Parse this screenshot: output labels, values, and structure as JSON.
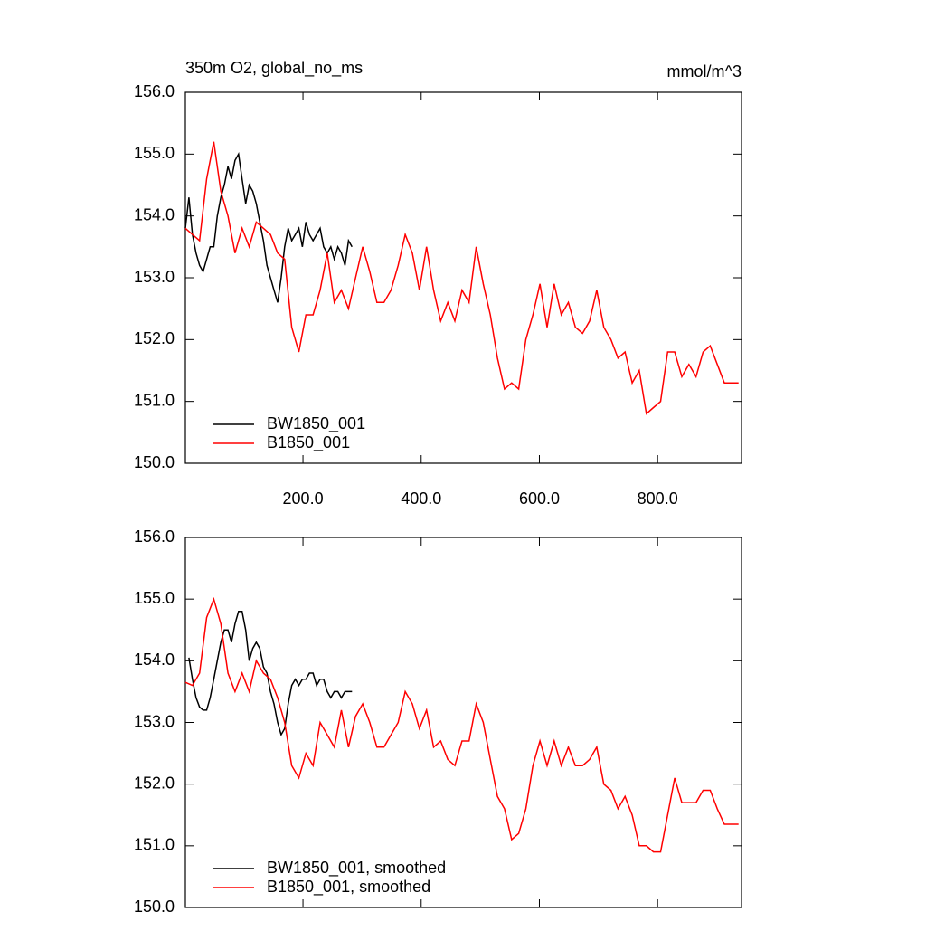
{
  "chart_data": [
    {
      "type": "line",
      "title": "350m O2, global_no_ms",
      "units": "mmol/m^3",
      "legend": "lower left",
      "grid": false,
      "xlim": [
        1,
        942
      ],
      "ylim": [
        150,
        156
      ],
      "xticks": [
        {
          "value": 200,
          "label": "200.0"
        },
        {
          "value": 400,
          "label": "400.0"
        },
        {
          "value": 600,
          "label": "600.0"
        },
        {
          "value": 800,
          "label": "800.0"
        }
      ],
      "yticks": [
        {
          "value": 150,
          "label": "150.0"
        },
        {
          "value": 151,
          "label": "151.0"
        },
        {
          "value": 152,
          "label": "152.0"
        },
        {
          "value": 153,
          "label": "153.0"
        },
        {
          "value": 154,
          "label": "154.0"
        },
        {
          "value": 155,
          "label": "155.0"
        },
        {
          "value": 156,
          "label": "156.0"
        }
      ],
      "series": [
        {
          "name": "BW1850_001",
          "color": "#000000",
          "x": [
            1,
            7,
            13,
            19,
            25,
            31,
            37,
            43,
            49,
            55,
            61,
            67,
            73,
            79,
            85,
            91,
            97,
            103,
            109,
            115,
            121,
            127,
            133,
            139,
            145,
            151,
            157,
            163,
            169,
            175,
            181,
            187,
            193,
            199,
            205,
            211,
            217,
            223,
            229,
            235,
            241,
            247,
            253,
            259,
            265,
            271,
            277,
            283
          ],
          "values": [
            153.8,
            154.3,
            153.7,
            153.4,
            153.2,
            153.1,
            153.3,
            153.5,
            153.5,
            154.0,
            154.3,
            154.5,
            154.8,
            154.6,
            154.9,
            155.0,
            154.6,
            154.2,
            154.5,
            154.4,
            154.2,
            153.9,
            153.6,
            153.2,
            153.0,
            152.8,
            152.6,
            153.0,
            153.5,
            153.8,
            153.6,
            153.7,
            153.8,
            153.5,
            153.9,
            153.7,
            153.6,
            153.7,
            153.8,
            153.5,
            153.4,
            153.5,
            153.3,
            153.5,
            153.4,
            153.2,
            153.6,
            153.5
          ]
        },
        {
          "name": "B1850_001",
          "color": "#ff0000",
          "x": [
            1,
            13,
            25,
            37,
            49,
            61,
            73,
            85,
            97,
            109,
            121,
            133,
            145,
            157,
            169,
            181,
            193,
            205,
            217,
            229,
            241,
            253,
            265,
            277,
            289,
            301,
            313,
            325,
            337,
            349,
            361,
            373,
            385,
            397,
            409,
            421,
            433,
            445,
            457,
            469,
            481,
            493,
            505,
            517,
            529,
            541,
            553,
            565,
            577,
            589,
            601,
            613,
            625,
            637,
            649,
            661,
            673,
            685,
            697,
            709,
            721,
            733,
            745,
            757,
            769,
            781,
            793,
            805,
            817,
            829,
            841,
            853,
            865,
            877,
            889,
            901,
            913,
            937
          ],
          "values": [
            153.8,
            153.7,
            153.6,
            154.6,
            155.2,
            154.4,
            154.0,
            153.4,
            153.8,
            153.5,
            153.9,
            153.8,
            153.7,
            153.4,
            153.3,
            152.2,
            151.8,
            152.4,
            152.4,
            152.8,
            153.4,
            152.6,
            152.8,
            152.5,
            153.0,
            153.5,
            153.1,
            152.6,
            152.6,
            152.8,
            153.2,
            153.7,
            153.4,
            152.8,
            153.5,
            152.8,
            152.3,
            152.6,
            152.3,
            152.8,
            152.6,
            153.5,
            152.9,
            152.4,
            151.7,
            151.2,
            151.3,
            151.2,
            152.0,
            152.4,
            152.9,
            152.2,
            152.9,
            152.4,
            152.6,
            152.2,
            152.1,
            152.3,
            152.8,
            152.2,
            152.0,
            151.7,
            151.8,
            151.3,
            151.5,
            150.8,
            150.9,
            151.0,
            151.8,
            151.8,
            151.4,
            151.6,
            151.4,
            151.8,
            151.9,
            151.6,
            151.3,
            151.3
          ]
        }
      ]
    },
    {
      "type": "line",
      "legend": "lower left",
      "grid": false,
      "xlim": [
        1,
        942
      ],
      "ylim": [
        150,
        156
      ],
      "xticks": [
        200,
        400,
        600,
        800
      ],
      "yticks": [
        {
          "value": 150,
          "label": "150.0"
        },
        {
          "value": 151,
          "label": "151.0"
        },
        {
          "value": 152,
          "label": "152.0"
        },
        {
          "value": 153,
          "label": "153.0"
        },
        {
          "value": 154,
          "label": "154.0"
        },
        {
          "value": 155,
          "label": "155.0"
        },
        {
          "value": 156,
          "label": "156.0"
        }
      ],
      "series": [
        {
          "name": "BW1850_001, smoothed",
          "color": "#000000",
          "x": [
            7,
            13,
            19,
            25,
            31,
            37,
            43,
            49,
            55,
            61,
            67,
            73,
            79,
            85,
            91,
            97,
            103,
            109,
            115,
            121,
            127,
            133,
            139,
            145,
            151,
            157,
            163,
            169,
            175,
            181,
            187,
            193,
            199,
            205,
            211,
            217,
            223,
            229,
            235,
            241,
            247,
            253,
            259,
            265,
            271,
            277,
            283
          ],
          "values": [
            154.05,
            153.7,
            153.4,
            153.25,
            153.2,
            153.2,
            153.4,
            153.7,
            154.0,
            154.3,
            154.5,
            154.5,
            154.3,
            154.6,
            154.8,
            154.8,
            154.5,
            154.0,
            154.2,
            154.3,
            154.2,
            153.9,
            153.8,
            153.5,
            153.3,
            153.0,
            152.8,
            152.9,
            153.3,
            153.6,
            153.7,
            153.6,
            153.7,
            153.7,
            153.8,
            153.8,
            153.6,
            153.7,
            153.7,
            153.5,
            153.4,
            153.5,
            153.5,
            153.4,
            153.5,
            153.5,
            153.5
          ]
        },
        {
          "name": "B1850_001, smoothed",
          "color": "#ff0000",
          "x": [
            1,
            13,
            25,
            37,
            49,
            61,
            73,
            85,
            97,
            109,
            121,
            133,
            145,
            157,
            169,
            181,
            193,
            205,
            217,
            229,
            241,
            253,
            265,
            277,
            289,
            301,
            313,
            325,
            337,
            349,
            361,
            373,
            385,
            397,
            409,
            421,
            433,
            445,
            457,
            469,
            481,
            493,
            505,
            517,
            529,
            541,
            553,
            565,
            577,
            589,
            601,
            613,
            625,
            637,
            649,
            661,
            673,
            685,
            697,
            709,
            721,
            733,
            745,
            757,
            769,
            781,
            793,
            805,
            817,
            829,
            841,
            853,
            865,
            877,
            889,
            901,
            913,
            937
          ],
          "values": [
            153.65,
            153.6,
            153.8,
            154.7,
            155.0,
            154.6,
            153.8,
            153.5,
            153.8,
            153.5,
            154.0,
            153.8,
            153.7,
            153.4,
            153.0,
            152.3,
            152.1,
            152.5,
            152.3,
            153.0,
            152.8,
            152.6,
            153.2,
            152.6,
            153.1,
            153.3,
            153.0,
            152.6,
            152.6,
            152.8,
            153.0,
            153.5,
            153.3,
            152.9,
            153.2,
            152.6,
            152.7,
            152.4,
            152.3,
            152.7,
            152.7,
            153.3,
            153.0,
            152.4,
            151.8,
            151.6,
            151.1,
            151.2,
            151.6,
            152.3,
            152.7,
            152.3,
            152.7,
            152.3,
            152.6,
            152.3,
            152.3,
            152.4,
            152.6,
            152.0,
            151.9,
            151.6,
            151.8,
            151.5,
            151.0,
            151.0,
            150.9,
            150.9,
            151.5,
            152.1,
            151.7,
            151.7,
            151.7,
            151.9,
            151.9,
            151.6,
            151.35,
            151.35
          ]
        }
      ]
    }
  ]
}
